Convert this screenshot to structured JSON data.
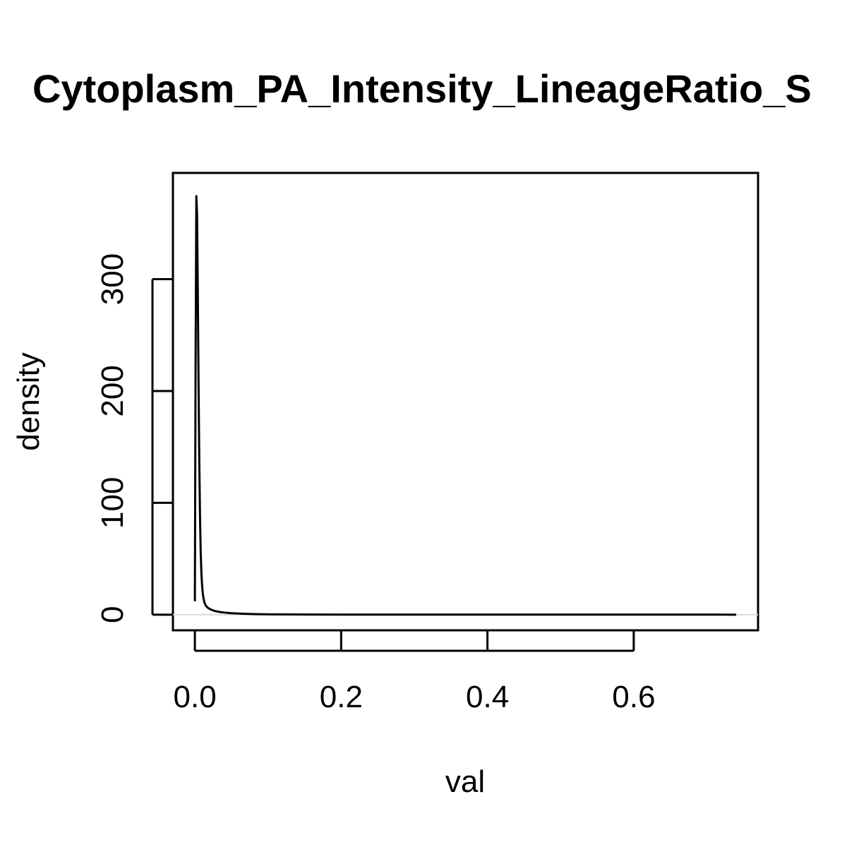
{
  "chart_data": {
    "type": "line",
    "title": "Cytoplasm_PA_Intensity_LineageRatio_S",
    "xlabel": "val",
    "ylabel": "density",
    "xlim": [
      -0.03,
      0.77
    ],
    "ylim": [
      -14,
      395
    ],
    "x_ticks": [
      0.0,
      0.2,
      0.4,
      0.6
    ],
    "x_tick_labels": [
      "0.0",
      "0.2",
      "0.4",
      "0.6"
    ],
    "y_ticks": [
      0,
      100,
      200,
      300
    ],
    "y_tick_labels": [
      "0",
      "100",
      "200",
      "300"
    ],
    "baseline": 0,
    "baseline_color": "#d9d9d9",
    "line_color": "#000000",
    "grid": false,
    "series": [
      {
        "x": [
          0.0,
          0.001,
          0.002,
          0.003,
          0.004,
          0.005,
          0.006,
          0.007,
          0.008,
          0.009,
          0.01,
          0.011,
          0.012,
          0.013,
          0.015,
          0.018,
          0.022,
          0.027,
          0.033,
          0.04,
          0.05,
          0.065,
          0.08,
          0.1,
          0.15,
          0.2,
          0.3,
          0.4,
          0.5,
          0.6,
          0.7,
          0.74
        ],
        "y": [
          12,
          230,
          375,
          358,
          290,
          210,
          140,
          88,
          55,
          36,
          25,
          18,
          14,
          11,
          8,
          6,
          4.5,
          3.3,
          2.5,
          1.9,
          1.3,
          0.8,
          0.5,
          0.3,
          0.15,
          0.08,
          0.04,
          0.02,
          0.01,
          0.01,
          0.01,
          0.0
        ]
      }
    ]
  }
}
